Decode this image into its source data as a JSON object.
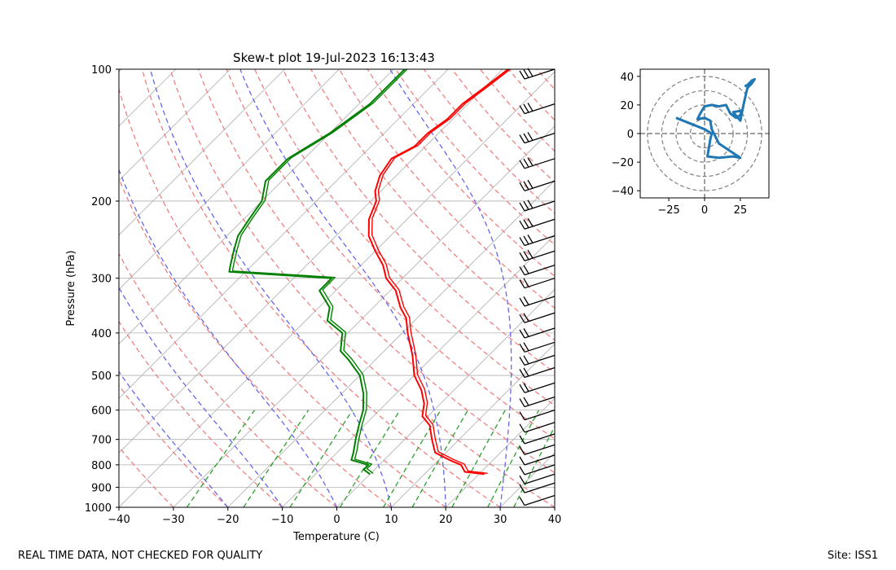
{
  "chart_data": [
    {
      "type": "line",
      "title": "Skew-t plot 19-Jul-2023 16:13:43",
      "xlabel": "Temperature (C)",
      "ylabel": "Pressure (hPa)",
      "xlim": [
        -40,
        40
      ],
      "ylim": [
        1000,
        100
      ],
      "y_scale": "log",
      "x_ticks": [
        -40,
        -30,
        -20,
        -10,
        0,
        10,
        20,
        30,
        40
      ],
      "x_tick_labels": [
        "−40",
        "−30",
        "−20",
        "−10",
        "0",
        "10",
        "20",
        "30",
        "40"
      ],
      "y_ticks": [
        1000,
        900,
        800,
        700,
        600,
        500,
        400,
        300,
        200,
        100
      ],
      "y_tick_labels": [
        "1000",
        "900",
        "800",
        "700",
        "600",
        "500",
        "400",
        "300",
        "200",
        "100"
      ],
      "series": [
        {
          "name": "Temperature",
          "color": "#ff0000",
          "points": [
            [
              100,
              -49
            ],
            [
              110,
              -50
            ],
            [
              120,
              -51
            ],
            [
              130,
              -51
            ],
            [
              140,
              -52
            ],
            [
              150,
              -52
            ],
            [
              160,
              -54
            ],
            [
              175,
              -53
            ],
            [
              190,
              -51
            ],
            [
              200,
              -49
            ],
            [
              220,
              -47
            ],
            [
              240,
              -44
            ],
            [
              260,
              -40
            ],
            [
              280,
              -36
            ],
            [
              300,
              -33
            ],
            [
              320,
              -29
            ],
            [
              350,
              -25
            ],
            [
              370,
              -22
            ],
            [
              400,
              -19
            ],
            [
              450,
              -14
            ],
            [
              500,
              -10
            ],
            [
              540,
              -6
            ],
            [
              580,
              -3
            ],
            [
              620,
              -1
            ],
            [
              650,
              2
            ],
            [
              700,
              5
            ],
            [
              750,
              8
            ],
            [
              780,
              12
            ],
            [
              800,
              15
            ],
            [
              830,
              17
            ],
            [
              840,
              21
            ]
          ]
        },
        {
          "name": "Dewpoint",
          "color": "#008000",
          "points": [
            [
              100,
              -68
            ],
            [
              120,
              -68
            ],
            [
              140,
              -70
            ],
            [
              160,
              -73
            ],
            [
              180,
              -73
            ],
            [
              200,
              -70
            ],
            [
              220,
              -69
            ],
            [
              240,
              -68
            ],
            [
              260,
              -66
            ],
            [
              280,
              -64
            ],
            [
              290,
              -63
            ],
            [
              300,
              -43
            ],
            [
              320,
              -43
            ],
            [
              350,
              -38
            ],
            [
              375,
              -36
            ],
            [
              400,
              -31
            ],
            [
              440,
              -28
            ],
            [
              460,
              -25
            ],
            [
              500,
              -20
            ],
            [
              550,
              -16
            ],
            [
              600,
              -13
            ],
            [
              650,
              -11
            ],
            [
              700,
              -9
            ],
            [
              750,
              -7
            ],
            [
              780,
              -6
            ],
            [
              800,
              -2
            ],
            [
              820,
              -2
            ],
            [
              840,
              0
            ]
          ]
        }
      ],
      "reference_lines": {
        "isotherms_color": "#b0b0b0",
        "dry_adiabats_color": "#f08080",
        "moist_adiabats_color": "#6666ee",
        "mixing_ratio_color": "#2ca02c"
      },
      "wind_barbs": {
        "color": "#000000",
        "pressures": [
          100,
          120,
          140,
          160,
          180,
          200,
          220,
          240,
          260,
          280,
          300,
          330,
          360,
          390,
          420,
          450,
          480,
          520,
          560,
          600,
          640,
          680,
          720,
          760,
          800,
          840,
          880,
          940
        ]
      }
    },
    {
      "type": "line",
      "title": "",
      "xlabel": "",
      "ylabel": "",
      "xlim": [
        -45,
        45
      ],
      "ylim": [
        -45,
        45
      ],
      "x_ticks": [
        -25,
        0,
        25
      ],
      "x_tick_labels": [
        "−25",
        "0",
        "25"
      ],
      "y_ticks": [
        40,
        20,
        0,
        -20,
        -40
      ],
      "y_tick_labels": [
        "40",
        "20",
        "0",
        "−20",
        "−40"
      ],
      "ring_radii": [
        10,
        20,
        30,
        40
      ],
      "series": [
        {
          "name": "Hodograph",
          "color": "#1f77b4",
          "points": [
            [
              -20,
              11
            ],
            [
              -10,
              7
            ],
            [
              0,
              3
            ],
            [
              5,
              0
            ],
            [
              4,
              -4
            ],
            [
              3,
              -10
            ],
            [
              2,
              -16
            ],
            [
              10,
              -17
            ],
            [
              20,
              -16
            ],
            [
              25,
              -17
            ],
            [
              10,
              -7
            ],
            [
              5,
              3
            ],
            [
              4,
              9
            ],
            [
              0,
              11
            ],
            [
              -5,
              10
            ],
            [
              -3,
              14
            ],
            [
              0,
              19
            ],
            [
              5,
              20
            ],
            [
              10,
              19
            ],
            [
              15,
              20
            ],
            [
              18,
              14
            ],
            [
              22,
              11
            ],
            [
              25,
              13
            ],
            [
              26,
              16
            ],
            [
              20,
              15
            ],
            [
              25,
              9
            ],
            [
              27,
              19
            ],
            [
              29,
              28
            ],
            [
              30,
              32
            ],
            [
              33,
              35
            ],
            [
              35,
              38
            ],
            [
              33,
              37
            ],
            [
              30,
              34
            ],
            [
              28,
              33
            ]
          ]
        }
      ]
    }
  ],
  "footer": {
    "left": "REAL TIME DATA, NOT CHECKED FOR QUALITY",
    "right": "Site: ISS1"
  }
}
